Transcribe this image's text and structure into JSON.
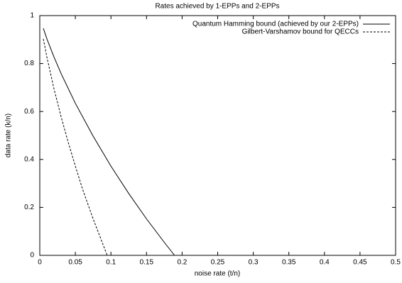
{
  "chart_data": {
    "type": "line",
    "title": "Rates achieved by 1-EPPs and 2-EPPs",
    "x_label": "noise rate (t/n)",
    "y_label": "data rate (k/n)",
    "xlim": [
      0,
      0.5
    ],
    "ylim": [
      0,
      1
    ],
    "xticks": [
      0,
      0.05,
      0.1,
      0.15,
      0.2,
      0.25,
      0.3,
      0.35,
      0.4,
      0.45,
      0.5
    ],
    "yticks": [
      0,
      0.2,
      0.4,
      0.6,
      0.8,
      1
    ],
    "legend": "top-right",
    "series": [
      {
        "name": "Quantum Hamming bound (achieved by our 2-EPPs)",
        "color": "#000000",
        "dash": "solid",
        "x": [
          0.005,
          0.01,
          0.02,
          0.03,
          0.05,
          0.075,
          0.1,
          0.125,
          0.15,
          0.175,
          0.1893
        ],
        "values": [
          0.947,
          0.903,
          0.827,
          0.758,
          0.634,
          0.497,
          0.372,
          0.258,
          0.152,
          0.054,
          0
        ]
      },
      {
        "name": "Gilbert-Varshamov bound for QECCs",
        "color": "#000000",
        "dash": "dashed",
        "x": [
          0.005,
          0.01,
          0.02,
          0.03,
          0.04,
          0.05,
          0.06,
          0.075,
          0.0947
        ],
        "values": [
          0.903,
          0.827,
          0.694,
          0.578,
          0.471,
          0.372,
          0.277,
          0.152,
          0
        ]
      }
    ]
  }
}
